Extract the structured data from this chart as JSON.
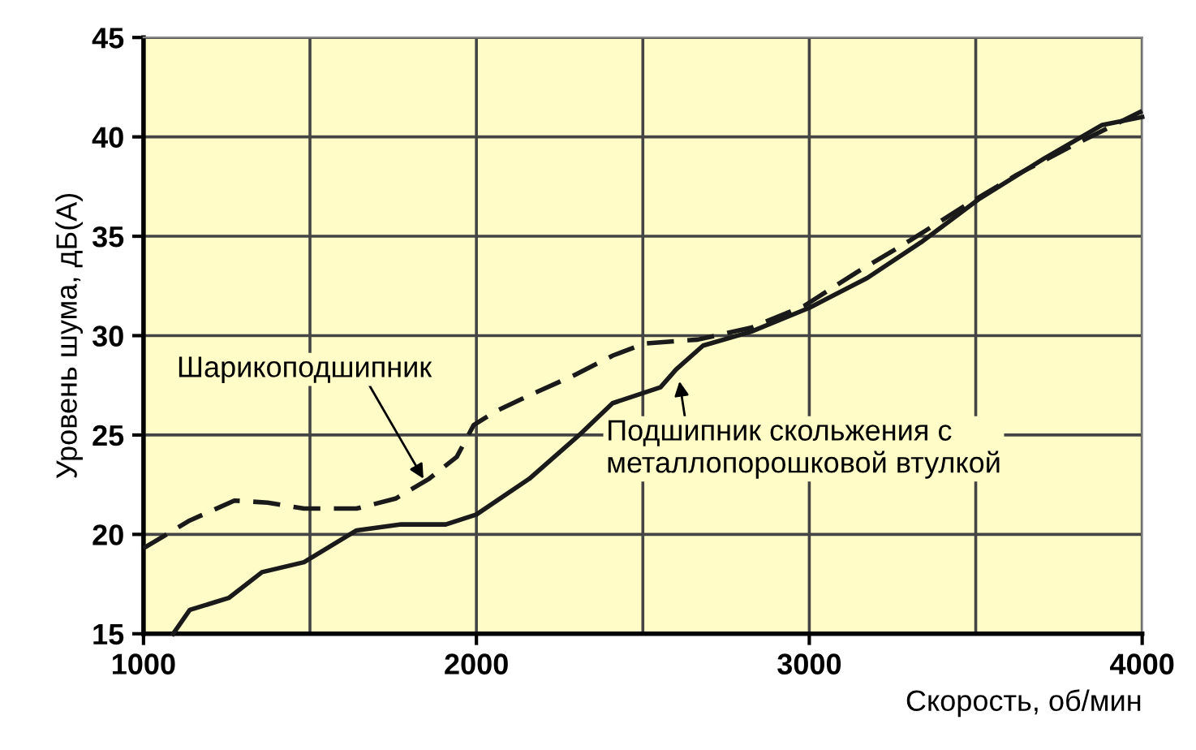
{
  "chart_data": {
    "type": "line",
    "xlabel": "Скорость, об/мин",
    "ylabel": "Уровень шума, дБ(А)",
    "xlim": [
      1000,
      4000
    ],
    "xticks": [
      1000,
      2000,
      3000,
      4000
    ],
    "ylim": [
      15,
      45
    ],
    "yticks": [
      15,
      20,
      25,
      30,
      35,
      40,
      45
    ],
    "grid": true,
    "legend": false,
    "marker": "none",
    "series": [
      {
        "color": "#1a1a1a",
        "line_style": "dashed",
        "x": [
          1000,
          1139,
          1273,
          1373,
          1482,
          1640,
          1757,
          1858,
          1941,
          1992,
          2059,
          2159,
          2293,
          2410,
          2505,
          2665,
          2825,
          2985,
          3144,
          3304,
          3464,
          3624,
          3784,
          4000
        ],
        "values": [
          19.3,
          20.7,
          21.7,
          21.6,
          21.3,
          21.3,
          21.8,
          22.8,
          23.9,
          25.5,
          26.2,
          27.0,
          28.0,
          29.0,
          29.6,
          29.8,
          30.4,
          31.5,
          33.2,
          34.8,
          36.5,
          38.1,
          39.5,
          41.3
        ]
      },
      {
        "color": "#1a1a1a",
        "line_style": "solid",
        "x": [
          1089,
          1139,
          1256,
          1356,
          1482,
          1640,
          1774,
          1908,
          2000,
          2159,
          2309,
          2409,
          2553,
          2600,
          2681,
          2825,
          3000,
          3174,
          3336,
          3512,
          3704,
          3880,
          4000
        ],
        "values": [
          15,
          16.2,
          16.8,
          18.1,
          18.6,
          20.2,
          20.5,
          20.5,
          21.0,
          22.8,
          25.0,
          26.6,
          27.4,
          28.3,
          29.5,
          30.2,
          31.4,
          32.9,
          34.7,
          36.9,
          38.9,
          40.6,
          41.0
        ]
      }
    ],
    "annotations": [
      {
        "text": "Шарикоподшипник",
        "x": 1841,
        "y": 22.8
      },
      {
        "text": "Подшипник скольжения с\nметаллопорошковой втулкой",
        "x": 2610,
        "y": 27.7
      }
    ]
  }
}
